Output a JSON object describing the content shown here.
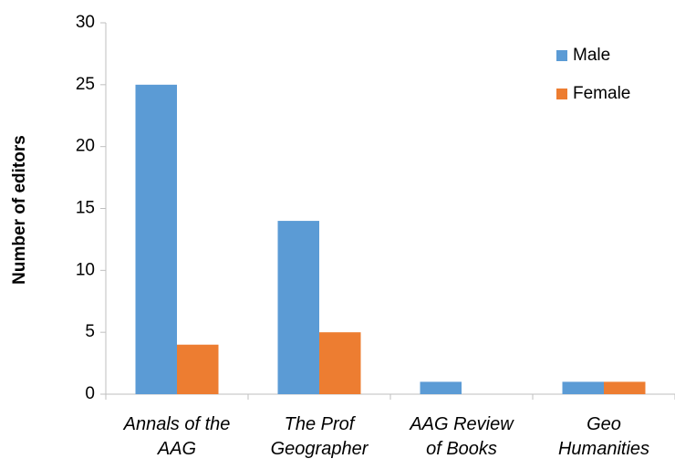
{
  "chart_data": {
    "type": "bar",
    "categories": [
      [
        "Annals of the",
        "AAG"
      ],
      [
        "The Prof",
        "Geographer"
      ],
      [
        "AAG Review",
        "of Books"
      ],
      [
        "Geo",
        "Humanities"
      ]
    ],
    "series": [
      {
        "name": "Male",
        "color": "#5b9bd5",
        "values": [
          25,
          14,
          1,
          1
        ]
      },
      {
        "name": "Female",
        "color": "#ed7d31",
        "values": [
          4,
          5,
          0,
          1
        ]
      }
    ],
    "ylabel": "Number of editors",
    "ylim": [
      0,
      30
    ],
    "yticks": [
      0,
      5,
      10,
      15,
      20,
      25,
      30
    ],
    "grid": false,
    "legend": "upper right"
  }
}
